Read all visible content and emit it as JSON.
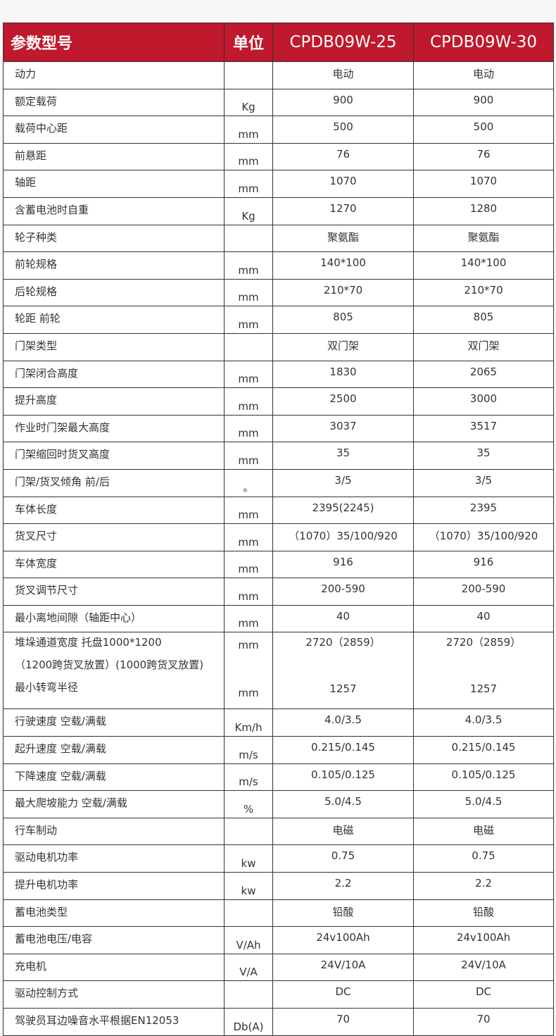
{
  "header": {
    "param": "参数型号",
    "unit": "单位",
    "models": [
      "CPDB09W-25",
      "CPDB09W-30"
    ]
  },
  "theme": {
    "header_bg": "#c0182c"
  },
  "rows": [
    {
      "label": "动力",
      "unit": "",
      "v1": "电动",
      "v2": "电动"
    },
    {
      "label": "额定载荷",
      "unit": "Kg",
      "v1": "900",
      "v2": "900"
    },
    {
      "label": "载荷中心距",
      "unit": "mm",
      "v1": "500",
      "v2": "500"
    },
    {
      "label": "前悬距",
      "unit": "mm",
      "v1": "76",
      "v2": "76"
    },
    {
      "label": "轴距",
      "unit": "mm",
      "v1": "1070",
      "v2": "1070"
    },
    {
      "label": "含蓄电池时自重",
      "unit": "Kg",
      "v1": "1270",
      "v2": "1280"
    },
    {
      "label": "轮子种类",
      "unit": "",
      "v1": "聚氨酯",
      "v2": "聚氨酯"
    },
    {
      "label": "前轮规格",
      "unit": "mm",
      "v1": "140*100",
      "v2": "140*100"
    },
    {
      "label": "后轮规格",
      "unit": "mm",
      "v1": "210*70",
      "v2": "210*70"
    },
    {
      "label": "轮距 前轮",
      "unit": "mm",
      "v1": "805",
      "v2": "805"
    },
    {
      "label": "门架类型",
      "unit": "",
      "v1": "双门架",
      "v2": "双门架"
    },
    {
      "label": "门架闭合高度",
      "unit": "mm",
      "v1": "1830",
      "v2": "2065"
    },
    {
      "label": "提升高度",
      "unit": "mm",
      "v1": "2500",
      "v2": "3000"
    },
    {
      "label": "作业时门架最大高度",
      "unit": "mm",
      "v1": "3037",
      "v2": "3517"
    },
    {
      "label": "门架缩回时货叉高度",
      "unit": "mm",
      "v1": "35",
      "v2": "35"
    },
    {
      "label": "门架/货叉倾角 前/后",
      "unit": "。",
      "v1": "3/5",
      "v2": "3/5"
    },
    {
      "label": "车体长度",
      "unit": "mm",
      "v1": "2395(2245)",
      "v2": "2395"
    },
    {
      "label": "货叉尺寸",
      "unit": "mm",
      "v1": "（1070）35/100/920",
      "v2": "（1070）35/100/920"
    },
    {
      "label": "车体宽度",
      "unit": "mm",
      "v1": "916",
      "v2": "916"
    },
    {
      "label": "货叉调节尺寸",
      "unit": "mm",
      "v1": "200-590",
      "v2": "200-590"
    },
    {
      "label": "最小离地间隙（轴距中心）",
      "unit": "mm",
      "v1": "40",
      "v2": "40"
    }
  ],
  "tall_row": {
    "label1": "堆垛通道宽度 托盘1000*1200",
    "label2": "（1200跨货叉放置）(1000跨货叉放置)",
    "label3": "最小转弯半径",
    "unit1": "mm",
    "unit3": "mm",
    "v1a": "2720（2859）",
    "v2a": "2720（2859）",
    "v1c": "1257",
    "v2c": "1257"
  },
  "rows2": [
    {
      "label": "行驶速度 空载/满载",
      "unit": "Km/h",
      "v1": "4.0/3.5",
      "v2": "4.0/3.5"
    },
    {
      "label": "起升速度 空载/满载",
      "unit": "m/s",
      "v1": "0.215/0.145",
      "v2": "0.215/0.145"
    },
    {
      "label": "下降速度 空载/满载",
      "unit": "m/s",
      "v1": "0.105/0.125",
      "v2": "0.105/0.125"
    },
    {
      "label": "最大爬坡能力 空载/满载",
      "unit": "%",
      "v1": "5.0/4.5",
      "v2": "5.0/4.5"
    },
    {
      "label": "行车制动",
      "unit": "",
      "v1": "电磁",
      "v2": "电磁"
    },
    {
      "label": "驱动电机功率",
      "unit": "kw",
      "v1": "0.75",
      "v2": "0.75"
    },
    {
      "label": "提升电机功率",
      "unit": "kw",
      "v1": "2.2",
      "v2": "2.2"
    },
    {
      "label": "蓄电池类型",
      "unit": "",
      "v1": "铅酸",
      "v2": "铅酸"
    },
    {
      "label": "蓄电池电压/电容",
      "unit": "V/Ah",
      "v1": "24v100Ah",
      "v2": "24v100Ah"
    },
    {
      "label": "充电机",
      "unit": "V/A",
      "v1": "24V/10A",
      "v2": "24V/10A"
    },
    {
      "label": "驱动控制方式",
      "unit": "",
      "v1": "DC",
      "v2": "DC"
    },
    {
      "label": "驾驶员耳边噪音水平根据EN12053",
      "unit": "Db(A)",
      "v1": "70",
      "v2": "70"
    }
  ]
}
